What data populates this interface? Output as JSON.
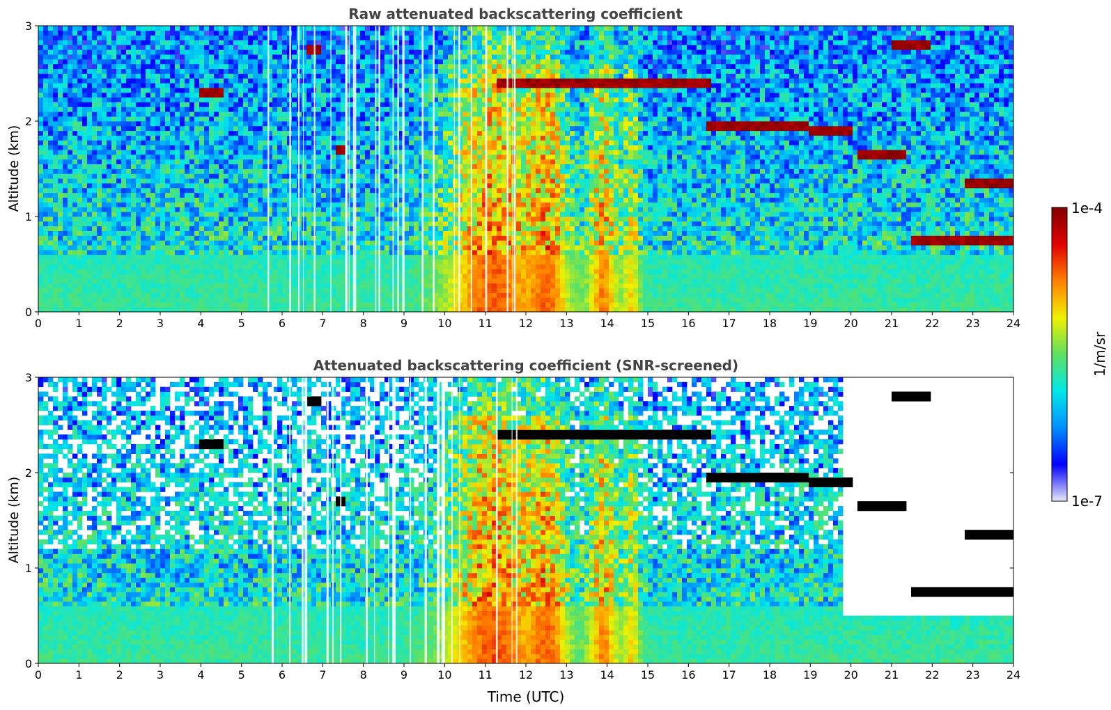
{
  "chart_data": [
    {
      "type": "heatmap",
      "title": "Raw attenuated backscattering coefficient",
      "xlabel": "",
      "ylabel": "Altitude (km)",
      "xlim": [
        0,
        24
      ],
      "ylim": [
        0,
        3
      ],
      "xticks": [
        0,
        1,
        2,
        3,
        4,
        5,
        6,
        7,
        8,
        9,
        10,
        11,
        12,
        13,
        14,
        15,
        16,
        17,
        18,
        19,
        20,
        21,
        22,
        23,
        24
      ],
      "yticks": [
        0,
        1,
        2,
        3
      ],
      "screening": "none",
      "layers": [
        {
          "t0": 4.0,
          "t1": 4.6,
          "z": 2.3
        },
        {
          "t0": 6.6,
          "t1": 6.9,
          "z": 2.75
        },
        {
          "t0": 7.3,
          "t1": 7.6,
          "z": 1.7
        },
        {
          "t0": 11.3,
          "t1": 16.5,
          "z": 2.4
        },
        {
          "t0": 16.5,
          "t1": 19.0,
          "z": 1.95
        },
        {
          "t0": 19.0,
          "t1": 20.0,
          "z": 1.9
        },
        {
          "t0": 20.2,
          "t1": 21.3,
          "z": 1.65
        },
        {
          "t0": 21.0,
          "t1": 22.0,
          "z": 2.8
        },
        {
          "t0": 21.5,
          "t1": 24.0,
          "z": 0.75
        },
        {
          "t0": 22.8,
          "t1": 24.0,
          "z": 1.35
        }
      ]
    },
    {
      "type": "heatmap",
      "title": "Attenuated backscattering coefficient (SNR-screened)",
      "xlabel": "Time (UTC)",
      "ylabel": "Altitude (km)",
      "xlim": [
        0,
        24
      ],
      "ylim": [
        0,
        3
      ],
      "xticks": [
        0,
        1,
        2,
        3,
        4,
        5,
        6,
        7,
        8,
        9,
        10,
        11,
        12,
        13,
        14,
        15,
        16,
        17,
        18,
        19,
        20,
        21,
        22,
        23,
        24
      ],
      "yticks": [
        0,
        1,
        2,
        3
      ],
      "screening": "SNR",
      "screened_region": {
        "t0": 19.8,
        "t1": 24.0,
        "z0": 0.5,
        "z1": 3.0
      }
    }
  ],
  "colorbar": {
    "label": "1/m/sr",
    "min_label": "1e-7",
    "max_label": "1e-4",
    "min": 1e-07,
    "max": 0.0001,
    "scale": "log",
    "colormap": [
      "#e8e8f8",
      "#0000ff",
      "#0090ff",
      "#00e8e8",
      "#60e060",
      "#f0f000",
      "#ff8000",
      "#e00000",
      "#800000"
    ],
    "saturated_color": "#000000"
  }
}
